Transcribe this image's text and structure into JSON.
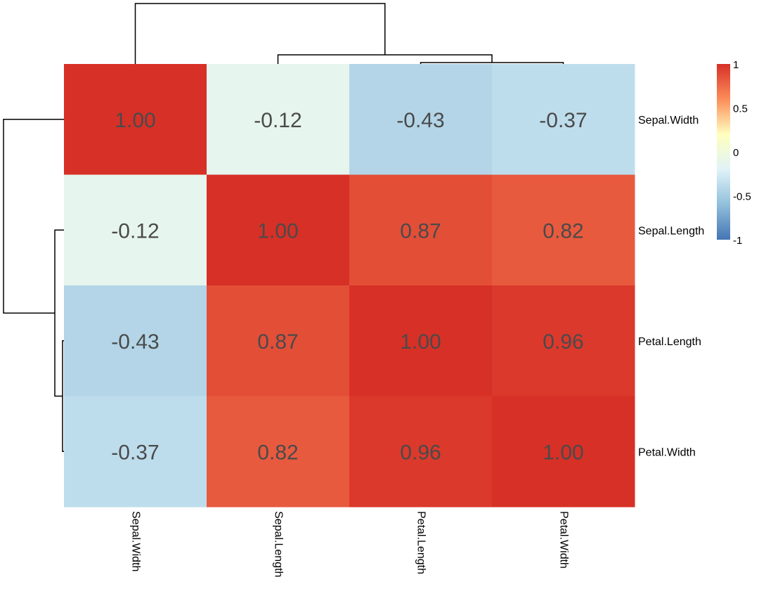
{
  "chart_data": {
    "type": "heatmap",
    "title": "",
    "rows": [
      "Sepal.Width",
      "Sepal.Length",
      "Petal.Length",
      "Petal.Width"
    ],
    "columns": [
      "Sepal.Width",
      "Sepal.Length",
      "Petal.Length",
      "Petal.Width"
    ],
    "values": [
      [
        1.0,
        -0.12,
        -0.43,
        -0.37
      ],
      [
        -0.12,
        1.0,
        0.87,
        0.82
      ],
      [
        -0.43,
        0.87,
        1.0,
        0.96
      ],
      [
        -0.37,
        0.82,
        0.96,
        1.0
      ]
    ],
    "cell_labels": [
      [
        "1.00",
        "-0.12",
        "-0.43",
        "-0.37"
      ],
      [
        "-0.12",
        "1.00",
        "0.87",
        "0.82"
      ],
      [
        "-0.43",
        "0.87",
        "1.00",
        "0.96"
      ],
      [
        "-0.37",
        "0.82",
        "0.96",
        "1.00"
      ]
    ],
    "color_scale": {
      "min": -1,
      "max": 1,
      "stops": [
        "#4575B4",
        "#91BFDB",
        "#E0F3F8",
        "#FFFFBF",
        "#FC8D59",
        "#D73027"
      ]
    },
    "legend": {
      "position": "top-right",
      "ticks": [
        {
          "value": 1,
          "label": "1"
        },
        {
          "value": 0.5,
          "label": "0.5"
        },
        {
          "value": 0,
          "label": "0"
        },
        {
          "value": -0.5,
          "label": "-0.5"
        },
        {
          "value": -1,
          "label": "-1"
        }
      ]
    },
    "row_dendrogram": true,
    "column_dendrogram": true
  }
}
